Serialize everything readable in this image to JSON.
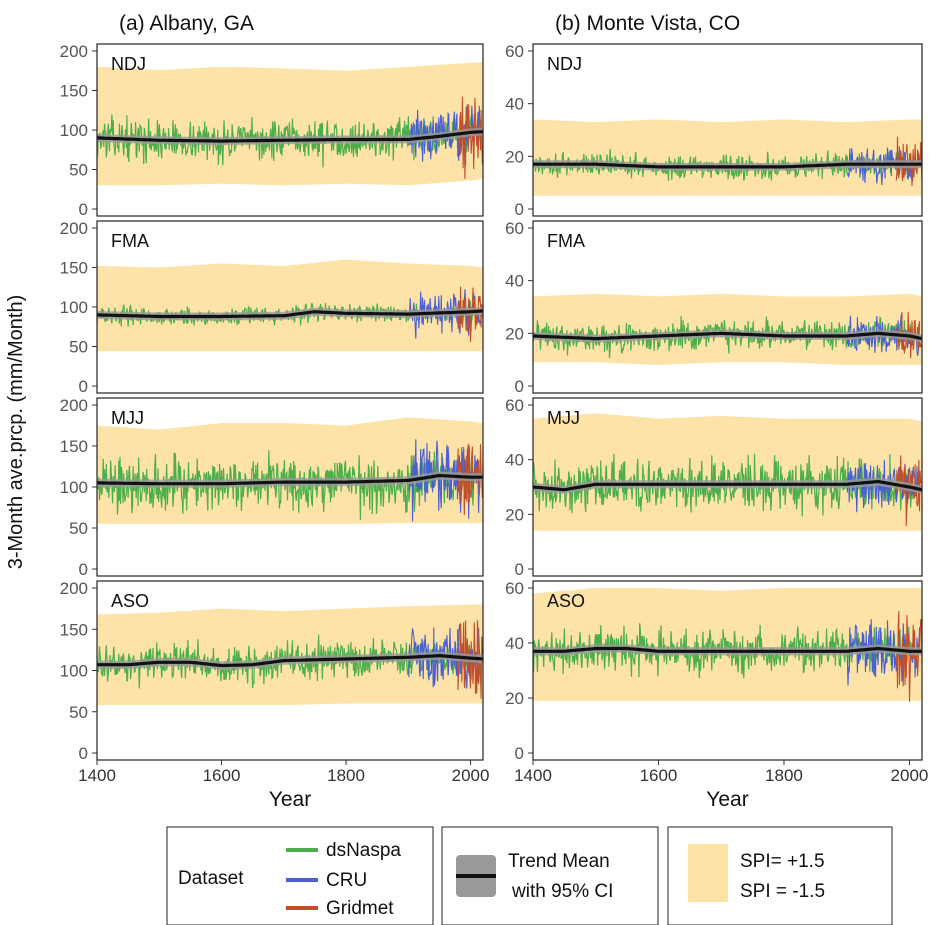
{
  "colors": {
    "dsNaspa": "#4cae4c",
    "CRU": "#4a5fd4",
    "Gridmet": "#c0502a",
    "spi_band": "#fde3a7",
    "trend": "#111111",
    "ci": "#9a9a9a"
  },
  "chart_data": [
    {
      "type": "line",
      "panel": "(a)",
      "title": "(a) Albany, GA",
      "season": "NDJ",
      "xlabel": "",
      "ylabel": "",
      "xlim": [
        1400,
        2020
      ],
      "ylim": [
        0,
        200
      ],
      "yticks": [
        0,
        50,
        100,
        150,
        200
      ],
      "xticks": [],
      "series": [
        {
          "name": "Trend Mean",
          "x": [
            1400,
            1500,
            1600,
            1700,
            1800,
            1900,
            1950,
            2000,
            2020
          ],
          "y": [
            90,
            87,
            86,
            87,
            88,
            88,
            92,
            97,
            98
          ]
        }
      ],
      "spi_band": {
        "x": [
          1400,
          1500,
          1600,
          1700,
          1800,
          1900,
          2000,
          2020
        ],
        "upper": [
          180,
          176,
          180,
          178,
          175,
          180,
          185,
          186
        ],
        "lower": [
          30,
          30,
          32,
          30,
          32,
          30,
          36,
          38
        ]
      },
      "noise_amp": 22,
      "cru_amp": 30,
      "grid_amp": 45
    },
    {
      "type": "line",
      "panel": "(b)",
      "title": "(b) Monte Vista, CO",
      "season": "NDJ",
      "xlabel": "",
      "ylabel": "",
      "xlim": [
        1400,
        2020
      ],
      "ylim": [
        0,
        60
      ],
      "yticks": [
        0,
        20,
        40,
        60
      ],
      "xticks": [],
      "series": [
        {
          "name": "Trend Mean",
          "x": [
            1400,
            1500,
            1600,
            1700,
            1800,
            1900,
            2000,
            2020
          ],
          "y": [
            17,
            17,
            16,
            16,
            16,
            17,
            17,
            17
          ]
        }
      ],
      "spi_band": {
        "x": [
          1400,
          1500,
          1600,
          1700,
          1800,
          1900,
          2000,
          2020
        ],
        "upper": [
          34,
          33,
          34,
          33,
          34,
          33,
          34,
          34
        ],
        "lower": [
          5,
          5,
          5,
          5,
          5,
          5,
          5,
          5
        ]
      },
      "noise_amp": 4,
      "cru_amp": 6,
      "grid_amp": 8
    },
    {
      "type": "line",
      "panel": "(a)",
      "title": "",
      "season": "FMA",
      "xlabel": "",
      "ylabel": "",
      "xlim": [
        1400,
        2020
      ],
      "ylim": [
        0,
        200
      ],
      "yticks": [
        0,
        50,
        100,
        150,
        200
      ],
      "xticks": [],
      "series": [
        {
          "name": "Trend Mean",
          "x": [
            1400,
            1500,
            1600,
            1700,
            1750,
            1800,
            1900,
            2000,
            2020
          ],
          "y": [
            90,
            88,
            88,
            89,
            94,
            92,
            91,
            94,
            95
          ]
        }
      ],
      "spi_band": {
        "x": [
          1400,
          1500,
          1600,
          1700,
          1800,
          1900,
          2000,
          2020
        ],
        "upper": [
          152,
          150,
          155,
          152,
          160,
          155,
          152,
          150
        ],
        "lower": [
          44,
          44,
          44,
          44,
          44,
          44,
          44,
          44
        ]
      },
      "noise_amp": 10,
      "cru_amp": 22,
      "grid_amp": 30
    },
    {
      "type": "line",
      "panel": "(b)",
      "title": "",
      "season": "FMA",
      "xlabel": "",
      "ylabel": "",
      "xlim": [
        1400,
        2020
      ],
      "ylim": [
        0,
        60
      ],
      "yticks": [
        0,
        20,
        40,
        60
      ],
      "xticks": [],
      "series": [
        {
          "name": "Trend Mean",
          "x": [
            1400,
            1500,
            1600,
            1700,
            1800,
            1900,
            1950,
            2000,
            2020
          ],
          "y": [
            19,
            18,
            19,
            20,
            19,
            19,
            20,
            19,
            18
          ]
        }
      ],
      "spi_band": {
        "x": [
          1400,
          1500,
          1600,
          1700,
          1800,
          1900,
          2000,
          2020
        ],
        "upper": [
          34,
          35,
          34,
          35,
          34,
          34,
          35,
          34
        ],
        "lower": [
          9,
          9,
          8,
          9,
          9,
          8,
          8,
          8
        ]
      },
      "noise_amp": 5,
      "cru_amp": 6,
      "grid_amp": 7
    },
    {
      "type": "line",
      "panel": "(a)",
      "title": "",
      "season": "MJJ",
      "xlabel": "",
      "ylabel": "",
      "xlim": [
        1400,
        2020
      ],
      "ylim": [
        0,
        200
      ],
      "yticks": [
        0,
        50,
        100,
        150,
        200
      ],
      "xticks": [],
      "series": [
        {
          "name": "Trend Mean",
          "x": [
            1400,
            1500,
            1600,
            1700,
            1800,
            1900,
            1950,
            2000,
            2020
          ],
          "y": [
            105,
            104,
            104,
            106,
            106,
            108,
            114,
            112,
            112
          ]
        }
      ],
      "spi_band": {
        "x": [
          1400,
          1500,
          1600,
          1700,
          1800,
          1900,
          2000,
          2020
        ],
        "upper": [
          175,
          170,
          178,
          178,
          175,
          185,
          180,
          178
        ],
        "lower": [
          55,
          55,
          55,
          55,
          55,
          56,
          56,
          56
        ]
      },
      "noise_amp": 30,
      "cru_amp": 40,
      "grid_amp": 40
    },
    {
      "type": "line",
      "panel": "(b)",
      "title": "",
      "season": "MJJ",
      "xlabel": "",
      "ylabel": "",
      "xlim": [
        1400,
        2020
      ],
      "ylim": [
        0,
        60
      ],
      "yticks": [
        0,
        20,
        40,
        60
      ],
      "xticks": [],
      "series": [
        {
          "name": "Trend Mean",
          "x": [
            1400,
            1450,
            1500,
            1600,
            1700,
            1800,
            1900,
            1950,
            2000,
            2020
          ],
          "y": [
            30,
            29,
            31,
            31,
            31,
            31,
            31,
            32,
            30,
            29
          ]
        }
      ],
      "spi_band": {
        "x": [
          1400,
          1500,
          1600,
          1700,
          1800,
          1900,
          2000,
          2020
        ],
        "upper": [
          55,
          57,
          55,
          56,
          55,
          55,
          55,
          54
        ],
        "lower": [
          14,
          14,
          14,
          14,
          14,
          14,
          14,
          14
        ]
      },
      "noise_amp": 8,
      "cru_amp": 9,
      "grid_amp": 10
    },
    {
      "type": "line",
      "panel": "(a)",
      "title": "",
      "season": "ASO",
      "xlabel": "Year",
      "ylabel": "",
      "xlim": [
        1400,
        2020
      ],
      "ylim": [
        0,
        200
      ],
      "yticks": [
        0,
        50,
        100,
        150,
        200
      ],
      "xticks": [
        1400,
        1600,
        1800,
        2000
      ],
      "series": [
        {
          "name": "Trend Mean",
          "x": [
            1400,
            1450,
            1500,
            1550,
            1600,
            1650,
            1700,
            1800,
            1900,
            1950,
            2000,
            2020
          ],
          "y": [
            107,
            107,
            110,
            110,
            106,
            107,
            112,
            114,
            116,
            118,
            115,
            114
          ]
        }
      ],
      "spi_band": {
        "x": [
          1400,
          1500,
          1600,
          1700,
          1800,
          1900,
          2000,
          2020
        ],
        "upper": [
          168,
          170,
          175,
          172,
          175,
          178,
          180,
          180
        ],
        "lower": [
          58,
          58,
          58,
          58,
          60,
          60,
          60,
          60
        ]
      },
      "noise_amp": 20,
      "cru_amp": 30,
      "grid_amp": 45
    },
    {
      "type": "line",
      "panel": "(b)",
      "title": "",
      "season": "ASO",
      "xlabel": "Year",
      "ylabel": "",
      "xlim": [
        1400,
        2020
      ],
      "ylim": [
        0,
        60
      ],
      "yticks": [
        0,
        20,
        40,
        60
      ],
      "xticks": [
        1400,
        1600,
        1800,
        2000
      ],
      "series": [
        {
          "name": "Trend Mean",
          "x": [
            1400,
            1450,
            1500,
            1550,
            1600,
            1700,
            1800,
            1900,
            1950,
            2000,
            2020
          ],
          "y": [
            37,
            37,
            38,
            38,
            37,
            37,
            37,
            37,
            38,
            37,
            37
          ]
        }
      ],
      "spi_band": {
        "x": [
          1400,
          1500,
          1600,
          1700,
          1800,
          1900,
          2000,
          2020
        ],
        "upper": [
          58,
          60,
          60,
          59,
          60,
          60,
          60,
          60
        ],
        "lower": [
          19,
          19,
          19,
          19,
          19,
          19,
          19,
          19
        ]
      },
      "noise_amp": 7,
      "cru_amp": 10,
      "grid_amp": 12
    }
  ],
  "figure": {
    "ylabel": "3-Month ave.prcp. (mm/Month)",
    "legend": {
      "dataset_title": "Dataset",
      "dataset_items": [
        "dsNaspa",
        "CRU",
        "Gridmet"
      ],
      "trend_label_1": "Trend Mean",
      "trend_label_2": "with 95% CI",
      "spi_label_1": "SPI= +1.5",
      "spi_label_2": "SPI = -1.5"
    }
  }
}
